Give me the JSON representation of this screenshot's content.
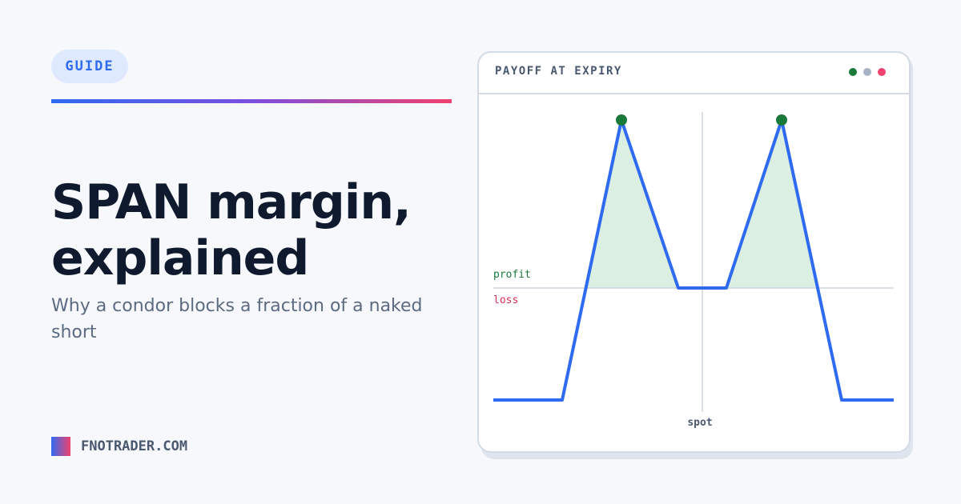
{
  "badge": "GUIDE",
  "title": "SPAN margin, explained",
  "subtitle": "Why a condor blocks a fraction of a naked short",
  "brand": "FNOTRADER.COM",
  "panel": {
    "title": "PAYOFF AT EXPIRY",
    "profit_label": "profit",
    "loss_label": "loss",
    "spot_label": "spot"
  }
}
